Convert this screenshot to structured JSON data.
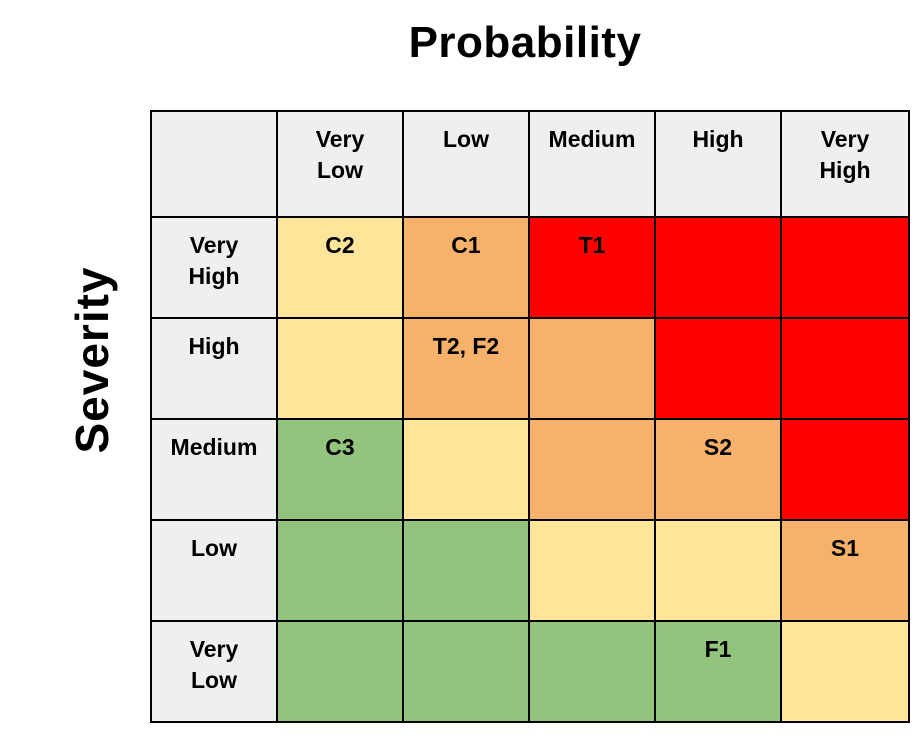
{
  "axes": {
    "probability_label": "Probability",
    "severity_label": "Severity"
  },
  "columns": [
    "Very\nLow",
    "Low",
    "Medium",
    "High",
    "Very\nHigh"
  ],
  "rows": [
    {
      "label": "Very\nHigh",
      "cells": [
        "C2",
        "C1",
        "T1",
        "",
        ""
      ]
    },
    {
      "label": "High",
      "cells": [
        "",
        "T2, F2",
        "",
        "",
        ""
      ]
    },
    {
      "label": "Medium",
      "cells": [
        "C3",
        "",
        "",
        "S2",
        ""
      ]
    },
    {
      "label": "Low",
      "cells": [
        "",
        "",
        "",
        "",
        "S1"
      ]
    },
    {
      "label": "Very\nLow",
      "cells": [
        "",
        "",
        "",
        "F1",
        ""
      ]
    }
  ],
  "risk_levels": {
    "green": "#93c47d",
    "yellow": "#ffe599",
    "orange": "#f6b26b",
    "red": "#ff0000"
  }
}
